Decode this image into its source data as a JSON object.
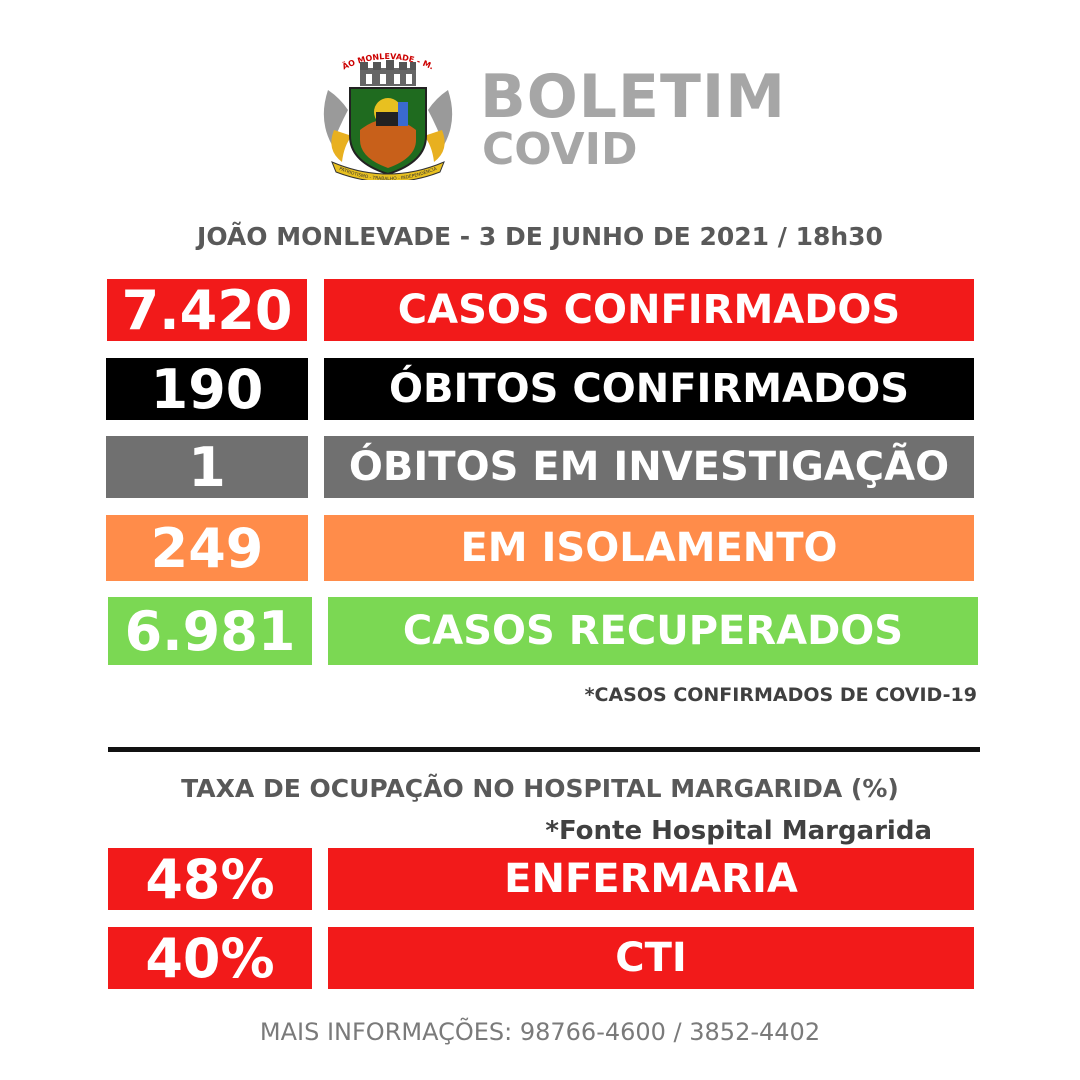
{
  "header": {
    "crest_text": "JOÃO MONLEVADE - M.G.",
    "crest_motto": "PATRIOTISMO - TRABALHO - INDEPENDÊNCIA",
    "title": "BOLETIM",
    "subtitle": "COVID"
  },
  "location_date": "JOÃO MONLEVADE -  3 DE JUNHO DE 2021 / 18h30",
  "stats": [
    {
      "value": "7.420",
      "label": "CASOS CONFIRMADOS",
      "color": "#f21a1a"
    },
    {
      "value": "190",
      "label": "ÓBITOS CONFIRMADOS",
      "color": "#000000"
    },
    {
      "value": "1",
      "label": "ÓBITOS EM INVESTIGAÇÃO",
      "color": "#707070"
    },
    {
      "value": "249",
      "label": "EM ISOLAMENTO",
      "color": "#ff8c4a"
    },
    {
      "value": "6.981",
      "label": "CASOS RECUPERADOS",
      "color": "#7bd853"
    }
  ],
  "stats_note": "*CASOS CONFIRMADOS DE COVID-19",
  "hospital": {
    "title": "TAXA DE OCUPAÇÃO NO HOSPITAL MARGARIDA (%)",
    "source": "*Fonte Hospital Margarida",
    "rows": [
      {
        "value": "48%",
        "label": "ENFERMARIA",
        "color": "#f21a1a"
      },
      {
        "value": "40%",
        "label": "CTI",
        "color": "#f21a1a"
      }
    ]
  },
  "footer": "MAIS INFORMAÇÕES: 98766-4600  /  3852-4402"
}
